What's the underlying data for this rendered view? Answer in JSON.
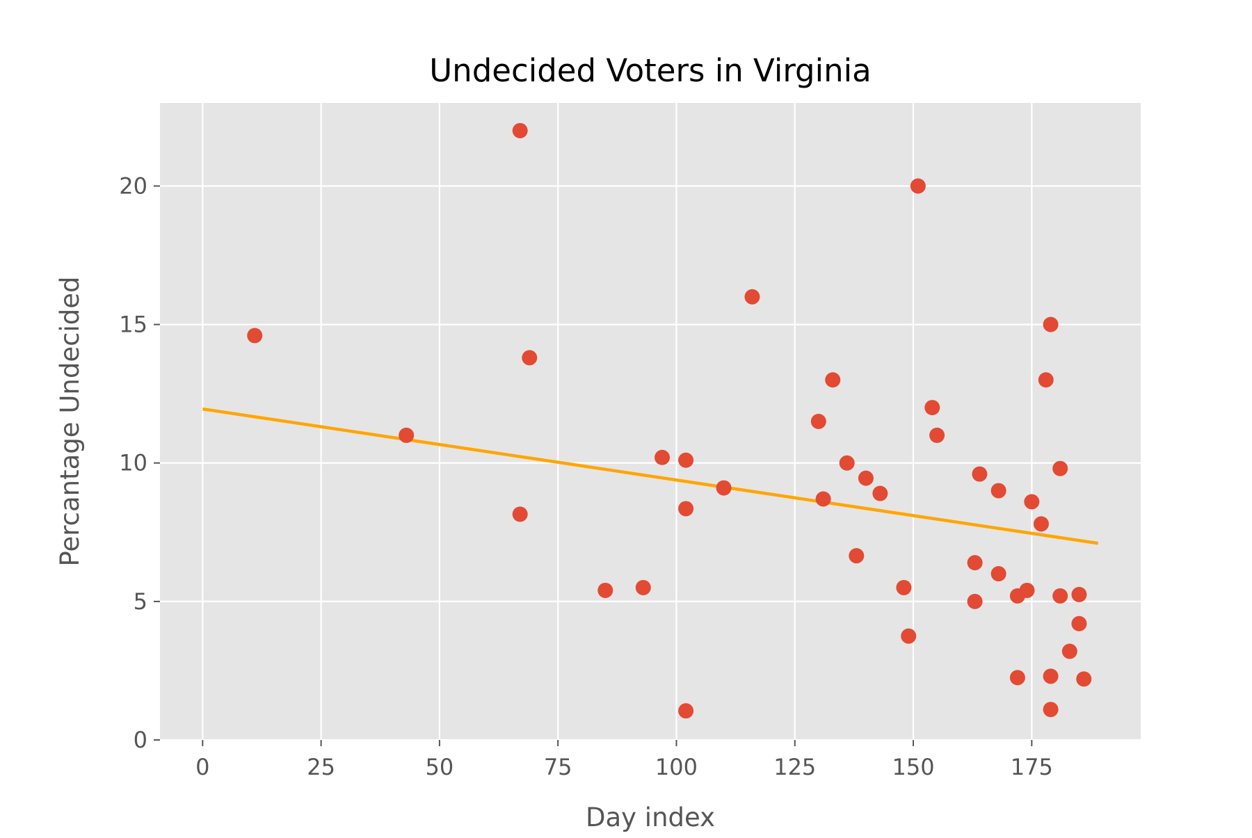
{
  "chart_data": {
    "type": "scatter",
    "title": "Undecided Voters in Virginia",
    "xlabel": "Day index",
    "ylabel": "Percantage Undecided",
    "xlim": [
      -9,
      198
    ],
    "ylim": [
      0,
      23
    ],
    "xticks": [
      0,
      25,
      50,
      75,
      100,
      125,
      150,
      175
    ],
    "yticks": [
      0,
      5,
      10,
      15,
      20
    ],
    "grid": true,
    "legend": "none",
    "colors": {
      "background": "#e5e5e5",
      "grid": "#ffffff",
      "points": "#e24a33",
      "trend": "#ffa500"
    },
    "series": [
      {
        "type": "scatter",
        "points": [
          [
            11,
            14.6
          ],
          [
            43,
            11.0
          ],
          [
            67,
            22.0
          ],
          [
            67,
            8.15
          ],
          [
            69,
            13.8
          ],
          [
            85,
            5.4
          ],
          [
            93,
            5.5
          ],
          [
            97,
            10.2
          ],
          [
            102,
            10.1
          ],
          [
            102,
            8.35
          ],
          [
            102,
            1.05
          ],
          [
            110,
            9.1
          ],
          [
            116,
            16.0
          ],
          [
            130,
            11.5
          ],
          [
            131,
            8.7
          ],
          [
            133,
            13.0
          ],
          [
            136,
            10.0
          ],
          [
            138,
            6.65
          ],
          [
            140,
            9.45
          ],
          [
            143,
            8.9
          ],
          [
            148,
            5.5
          ],
          [
            149,
            3.75
          ],
          [
            151,
            20.0
          ],
          [
            154,
            12.0
          ],
          [
            155,
            11.0
          ],
          [
            163,
            6.4
          ],
          [
            163,
            5.0
          ],
          [
            164,
            9.6
          ],
          [
            168,
            9.0
          ],
          [
            168,
            6.0
          ],
          [
            172,
            5.2
          ],
          [
            172,
            2.25
          ],
          [
            174,
            5.4
          ],
          [
            175,
            8.6
          ],
          [
            177,
            7.8
          ],
          [
            178,
            13.0
          ],
          [
            179,
            15.0
          ],
          [
            179,
            2.3
          ],
          [
            179,
            1.1
          ],
          [
            181,
            9.8
          ],
          [
            181,
            5.2
          ],
          [
            183,
            3.2
          ],
          [
            185,
            5.25
          ],
          [
            185,
            4.2
          ],
          [
            186,
            2.2
          ]
        ]
      },
      {
        "type": "line",
        "points": [
          [
            0,
            11.95
          ],
          [
            189,
            7.1
          ]
        ]
      }
    ]
  }
}
